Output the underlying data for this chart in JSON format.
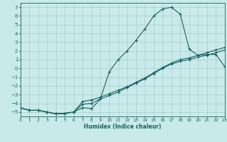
{
  "xlabel": "Humidex (Indice chaleur)",
  "bg_color": "#c8eaea",
  "line_color": "#1a6060",
  "grid_color": "#a8cccc",
  "xlim": [
    0,
    23
  ],
  "ylim": [
    -5.5,
    7.5
  ],
  "xticks": [
    0,
    1,
    2,
    3,
    4,
    5,
    6,
    7,
    8,
    9,
    10,
    11,
    12,
    13,
    14,
    15,
    16,
    17,
    18,
    19,
    20,
    21,
    22,
    23
  ],
  "yticks": [
    -5,
    -4,
    -3,
    -2,
    -1,
    0,
    1,
    2,
    3,
    4,
    5,
    6,
    7
  ],
  "line1_x": [
    0,
    1,
    2,
    3,
    4,
    5,
    6,
    7,
    8,
    9,
    10,
    11,
    12,
    13,
    14,
    15,
    16,
    17,
    18,
    19,
    20,
    21,
    22,
    23
  ],
  "line1_y": [
    -4.5,
    -4.8,
    -4.8,
    -5.0,
    -5.2,
    -5.15,
    -5.0,
    -4.5,
    -4.6,
    -3.5,
    -0.4,
    1.0,
    2.0,
    3.2,
    4.5,
    6.0,
    6.8,
    7.0,
    6.2,
    2.2,
    1.5,
    1.6,
    1.6,
    0.2
  ],
  "line2_x": [
    0,
    1,
    2,
    3,
    4,
    5,
    6,
    7,
    8,
    9,
    10,
    11,
    12,
    13,
    14,
    15,
    16,
    17,
    18,
    19,
    20,
    21,
    22,
    23
  ],
  "line2_y": [
    -4.5,
    -4.8,
    -4.8,
    -5.0,
    -5.2,
    -5.15,
    -5.0,
    -3.8,
    -3.6,
    -3.3,
    -2.9,
    -2.5,
    -2.1,
    -1.6,
    -1.1,
    -0.5,
    0.1,
    0.6,
    1.0,
    1.2,
    1.5,
    1.8,
    2.1,
    2.4
  ],
  "line3_x": [
    0,
    1,
    2,
    3,
    4,
    5,
    6,
    7,
    8,
    9,
    10,
    11,
    12,
    13,
    14,
    15,
    16,
    17,
    18,
    19,
    20,
    21,
    22,
    23
  ],
  "line3_y": [
    -4.5,
    -4.8,
    -4.8,
    -5.0,
    -5.2,
    -5.15,
    -5.0,
    -4.1,
    -4.0,
    -3.5,
    -3.1,
    -2.7,
    -2.2,
    -1.7,
    -1.2,
    -0.6,
    0.0,
    0.5,
    0.8,
    1.0,
    1.3,
    1.5,
    1.8,
    2.1
  ]
}
